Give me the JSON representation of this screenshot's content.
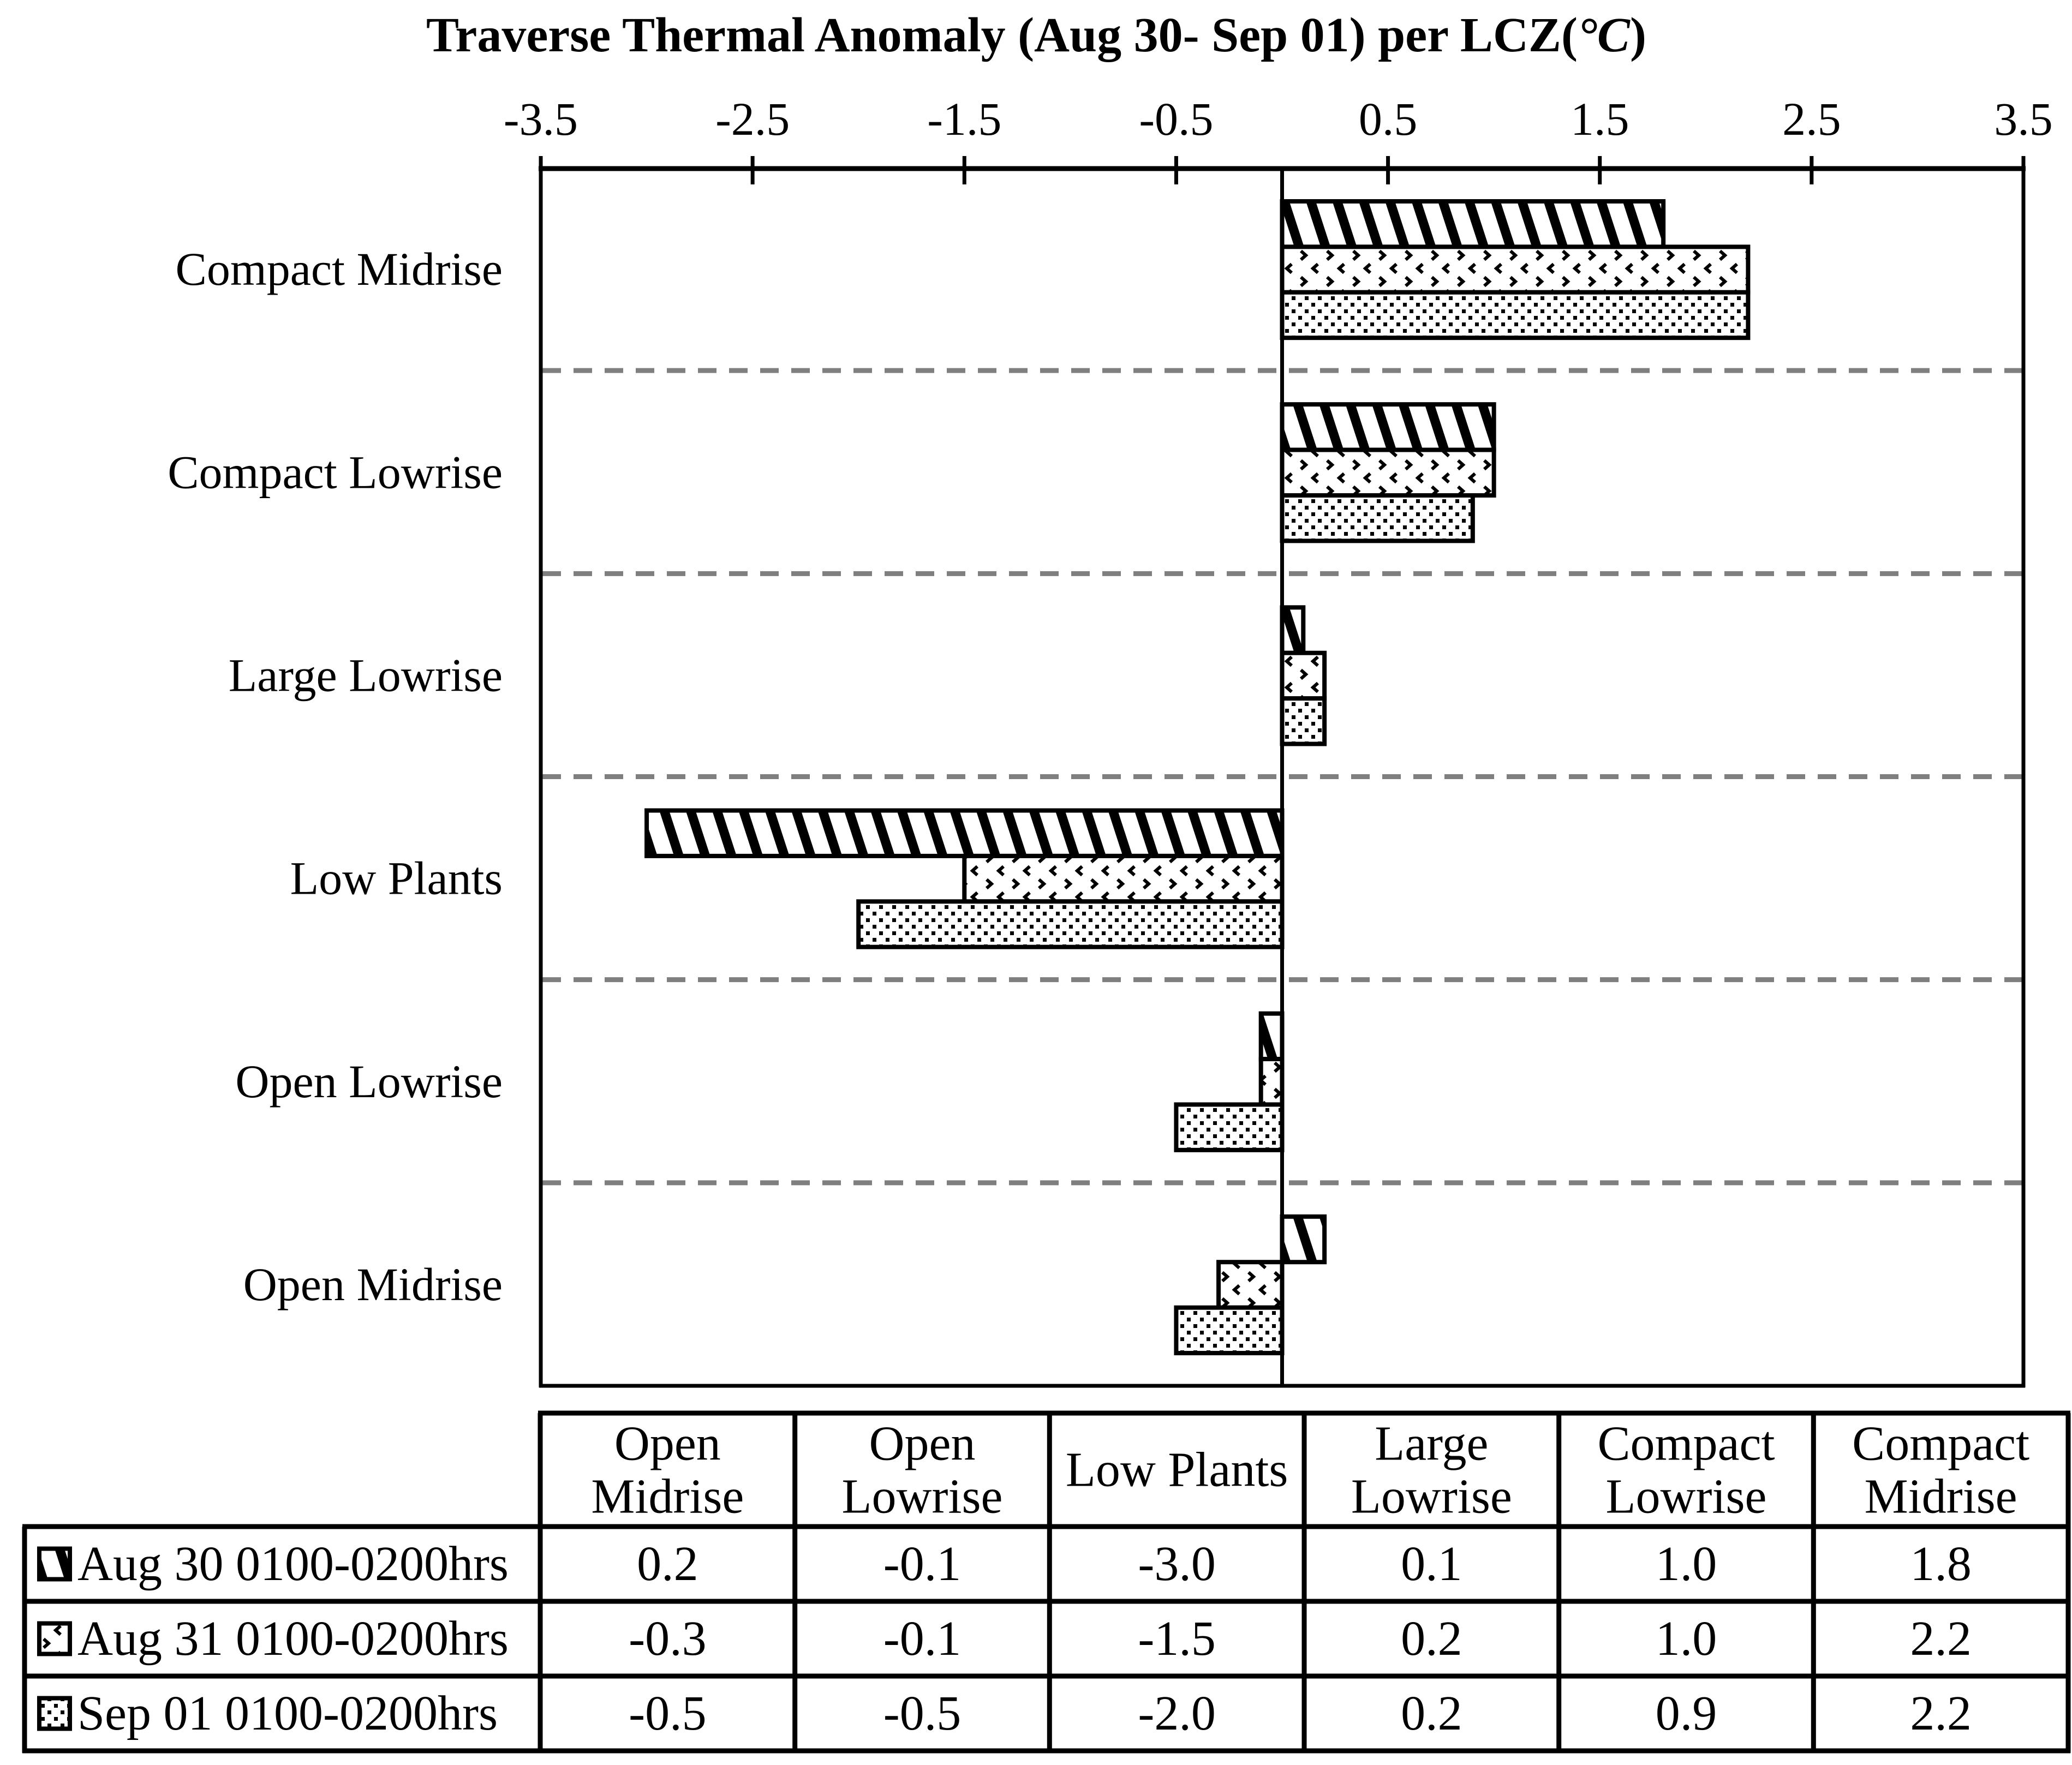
{
  "page": {
    "background": "#ffffff"
  },
  "title_parts": {
    "prefix": "Traverse Thermal Anomaly (Aug 30- Sep 01) per LCZ(",
    "unit": "°C",
    "suffix": ")"
  },
  "chart_data": {
    "type": "bar",
    "orientation": "horizontal",
    "title": "Traverse Thermal Anomaly (Aug 30- Sep 01) per LCZ(°C)",
    "xlim": [
      -3.5,
      3.5
    ],
    "xticks": [
      "-3.5",
      "-2.5",
      "-1.5",
      "-0.5",
      "0.5",
      "1.5",
      "2.5",
      "3.5"
    ],
    "grid": "dashed-horizontal-between-categories",
    "legend_position": "bottom-table",
    "categories": [
      "Compact Midrise",
      "Compact Lowrise",
      "Large Lowrise",
      "Low Plants",
      "Open Lowrise",
      "Open Midrise"
    ],
    "series": [
      {
        "name": "Aug 30 0100-0200hrs",
        "pattern": "diagonal-stripe",
        "values": [
          1.8,
          1.0,
          0.1,
          -3.0,
          -0.1,
          0.2
        ]
      },
      {
        "name": "Aug 31 0100-0200hrs",
        "pattern": "chevron-speckle",
        "values": [
          2.2,
          1.0,
          0.2,
          -1.5,
          -0.1,
          -0.3
        ]
      },
      {
        "name": "Sep 01 0100-0200hrs",
        "pattern": "dot-grid",
        "values": [
          2.2,
          0.9,
          0.2,
          -2.0,
          -0.5,
          -0.5
        ]
      }
    ],
    "colors": {
      "bar_fill": "#ffffff",
      "bar_stroke": "#000000",
      "gridline": "#7f7f7f",
      "axis": "#000000",
      "text": "#000000"
    }
  },
  "table": {
    "column_headers": [
      [
        "Open",
        "Midrise"
      ],
      [
        "Open",
        "Lowrise"
      ],
      [
        "Low Plants"
      ],
      [
        "Large",
        "Lowrise"
      ],
      [
        "Compact",
        "Lowrise"
      ],
      [
        "Compact",
        "Midrise"
      ]
    ],
    "rows": [
      {
        "label": "Aug 30 0100-0200hrs",
        "swatch": "diagonal-stripe",
        "values": [
          "0.2",
          "-0.1",
          "-3.0",
          "0.1",
          "1.0",
          "1.8"
        ]
      },
      {
        "label": "Aug 31 0100-0200hrs",
        "swatch": "chevron-speckle",
        "values": [
          "-0.3",
          "-0.1",
          "-1.5",
          "0.2",
          "1.0",
          "2.2"
        ]
      },
      {
        "label": "Sep 01 0100-0200hrs",
        "swatch": "dot-grid",
        "values": [
          "-0.5",
          "-0.5",
          "-2.0",
          "0.2",
          "0.9",
          "2.2"
        ]
      }
    ]
  }
}
